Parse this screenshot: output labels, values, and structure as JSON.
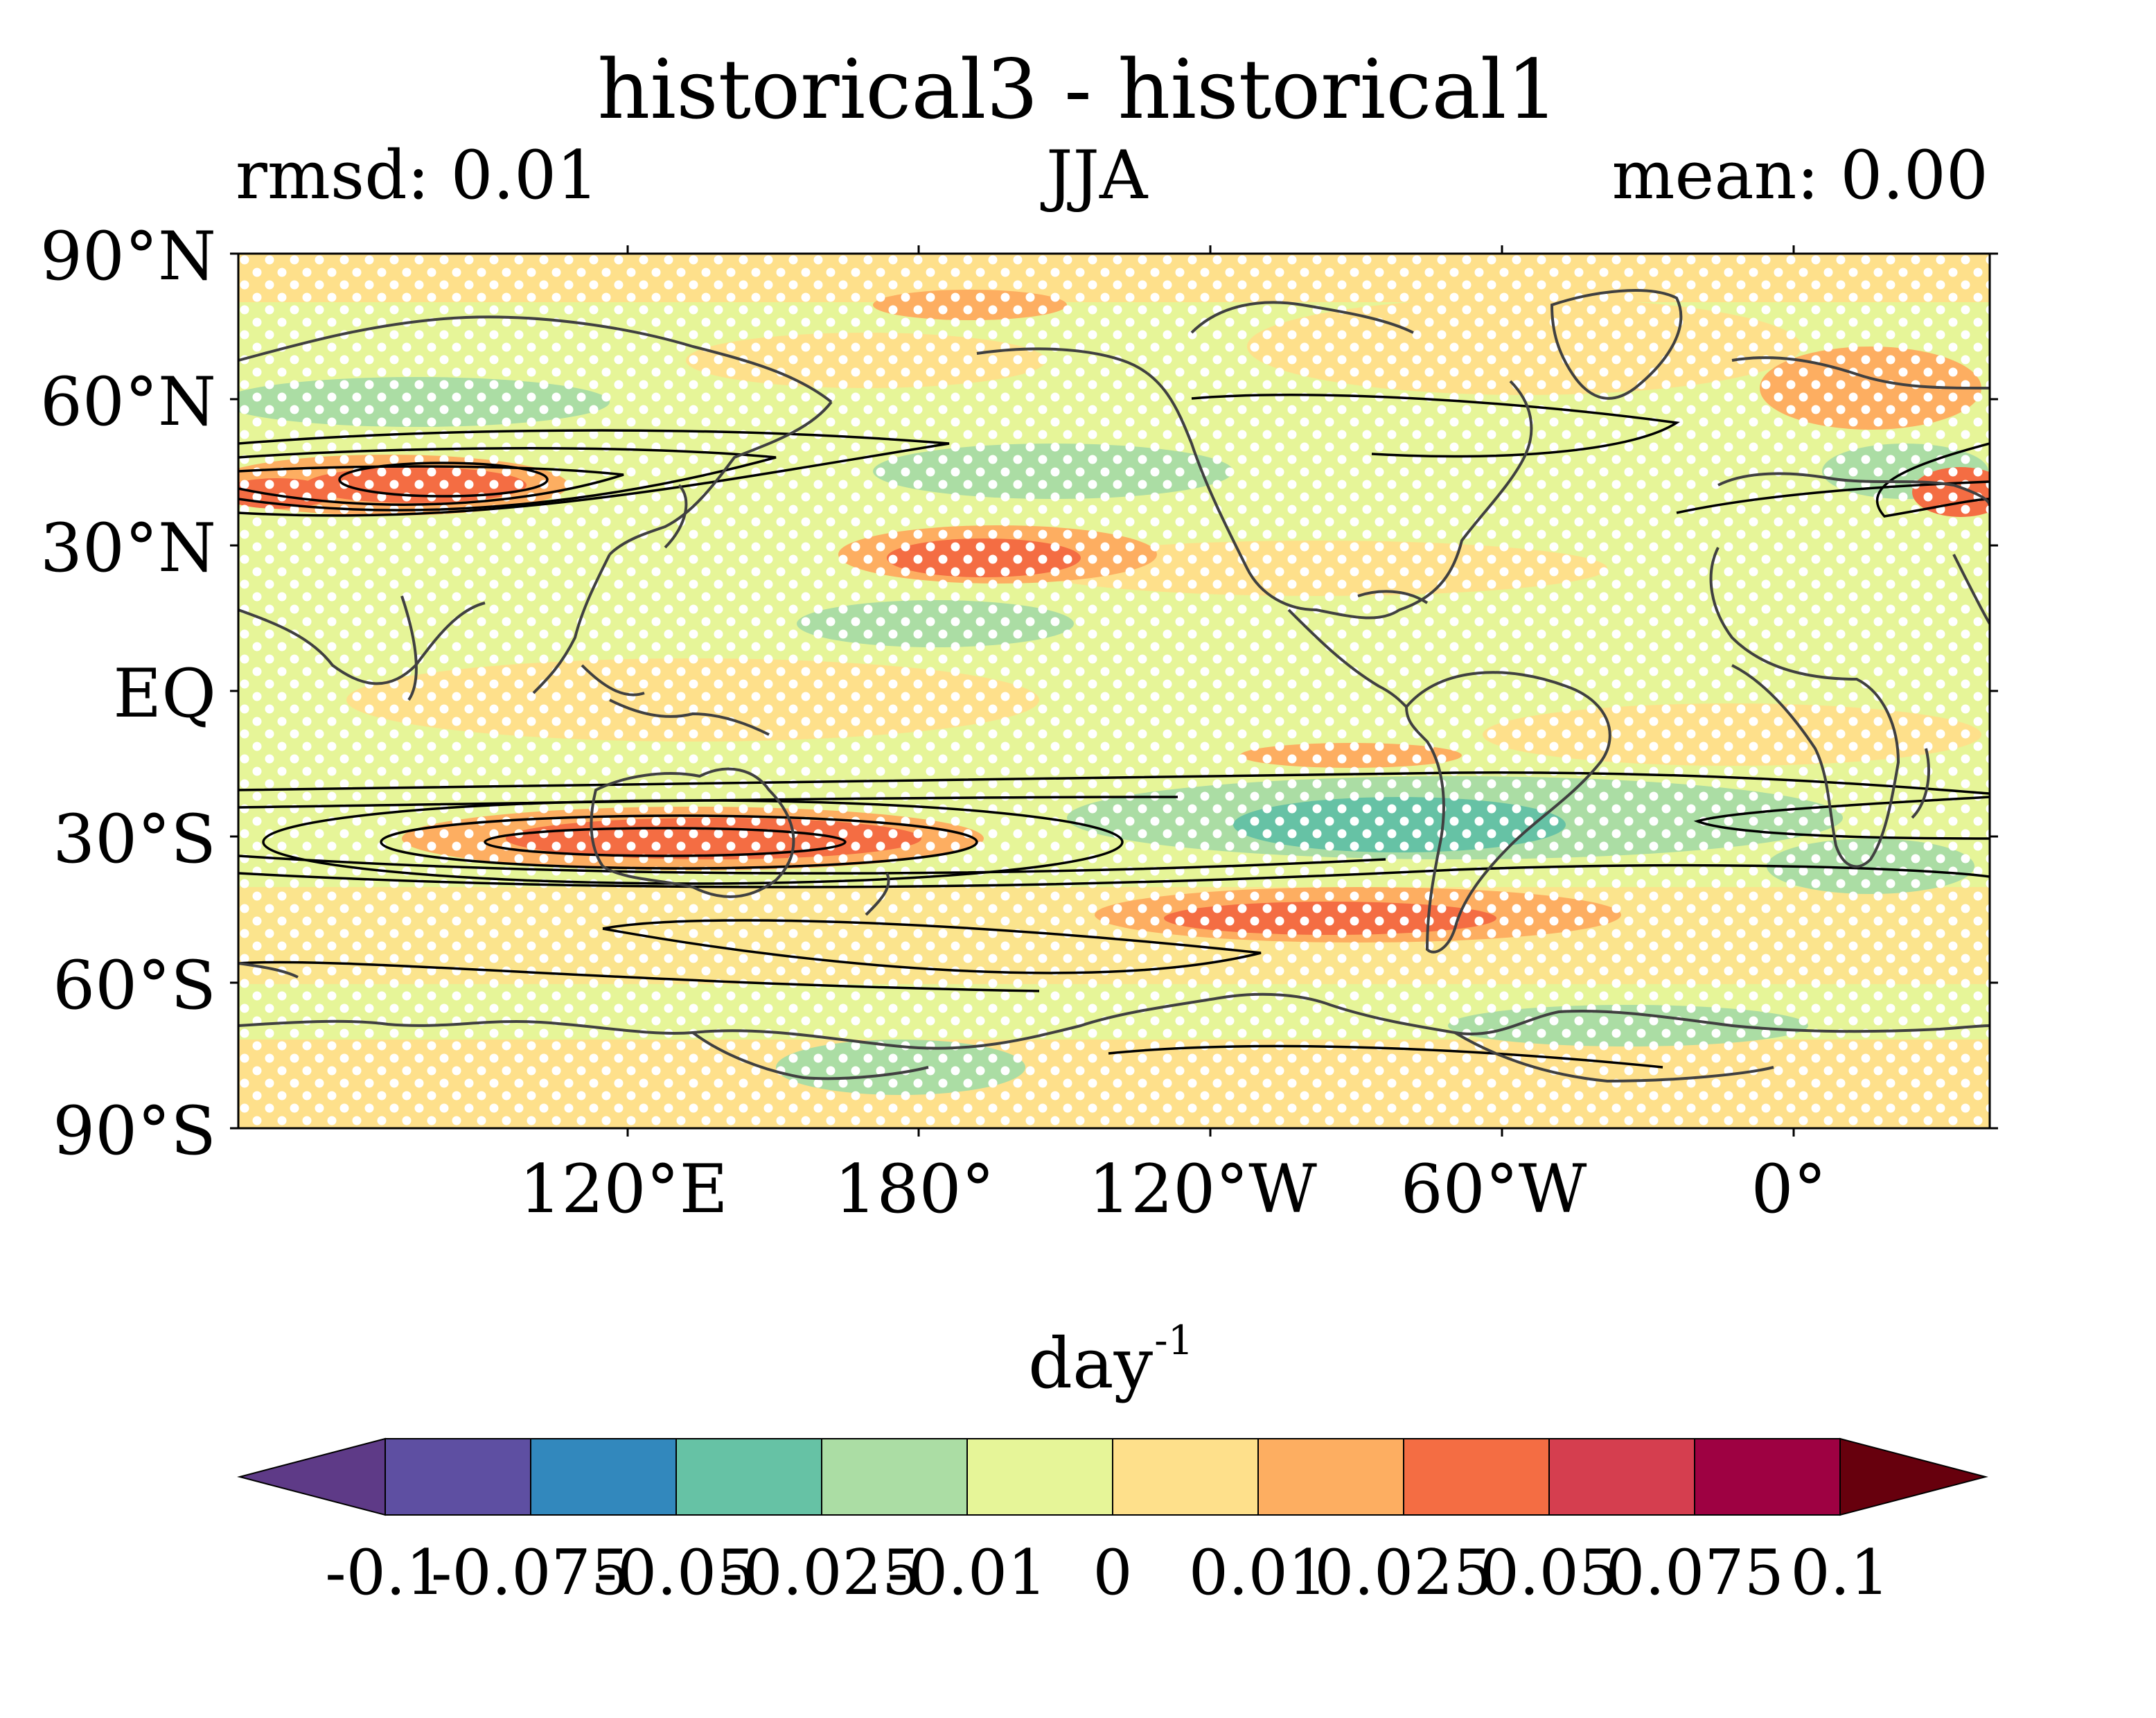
{
  "title": "historical3 - historical1",
  "stats": {
    "rmsd": "rmsd: 0.01",
    "season": "JJA",
    "mean": "mean: 0.00"
  },
  "map": {
    "projection": "plate-carree",
    "central_longitude": "Pacific-centered (≈155°W)",
    "lat_labels": [
      "90°N",
      "60°N",
      "30°N",
      "EQ",
      "30°S",
      "60°S",
      "90°S"
    ],
    "lon_labels": [
      "120°E",
      "180°",
      "120°W",
      "60°W",
      "0°"
    ],
    "field": "difference (historical3 − historical1), JJA",
    "overlays": [
      "coastlines",
      "black contour lines (jet core)",
      "white stippling"
    ],
    "colormap": "Spectral_r (diverging, purple→red)"
  },
  "colorbar": {
    "unit": "day",
    "unit_exponent": "-1",
    "extend": "both",
    "boundaries": [
      -0.1,
      -0.075,
      -0.05,
      -0.025,
      -0.01,
      0,
      0.01,
      0.025,
      0.05,
      0.075,
      0.1
    ],
    "tick_labels": [
      "-0.1",
      "-0.075",
      "-0.05",
      "-0.025",
      "-0.01",
      "0",
      "0.01",
      "0.025",
      "0.05",
      "0.075",
      "0.1"
    ],
    "under_color": "#5e3a87",
    "over_color": "#67000d",
    "colors": [
      "#5e4fa2",
      "#3288bd",
      "#66c2a5",
      "#abdda4",
      "#e6f598",
      "#fee08b",
      "#fdae61",
      "#f46d43",
      "#d53e4f",
      "#9e0142"
    ]
  }
}
